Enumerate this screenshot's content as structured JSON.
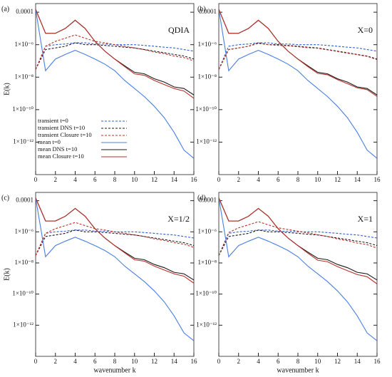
{
  "chart_data": [
    {
      "type": "line",
      "panel_label": "(a)",
      "annotation": "QDIA",
      "ylabel": "E(k)",
      "yscale": "log",
      "legend": "lower left",
      "x": [
        0,
        1,
        2,
        3,
        4,
        5,
        6,
        7,
        8,
        9,
        10,
        11,
        12,
        13,
        14,
        15,
        16
      ],
      "xlim": [
        0,
        16
      ],
      "xticks": [
        0,
        2,
        4,
        6,
        8,
        10,
        12,
        14,
        16
      ],
      "ylim": [
        1e-14,
        0.00034
      ],
      "yticks": [
        0.0001,
        {
          "value": 1e-06,
          "label": "1×10⁻⁶"
        },
        {
          "value": 1e-08,
          "label": "1×10⁻⁸"
        },
        {
          "value": 1e-10,
          "label": "1×10⁻¹⁰"
        },
        {
          "value": 1e-12,
          "label": "1×10⁻¹²"
        }
      ],
      "series": [
        {
          "name": "transient t=0",
          "color": "#2f5fd0",
          "dash": true,
          "values": [
            3e-08,
            8e-07,
            1e-06,
            1.1e-06,
            1.3e-06,
            1.3e-06,
            1.1e-06,
            1.1e-06,
            1e-06,
            1e-06,
            1e-06,
            9e-07,
            8e-07,
            7e-07,
            6.3e-07,
            5e-07,
            4e-07
          ]
        },
        {
          "name": "transient DNS t=10",
          "color": "#1a1a1a",
          "dash": true,
          "values": [
            3e-08,
            5e-07,
            6.3e-07,
            8e-07,
            1.3e-06,
            1e-06,
            1e-06,
            9e-07,
            8e-07,
            7e-07,
            6.3e-07,
            5e-07,
            4e-07,
            3.2e-07,
            2.5e-07,
            2e-07,
            1.3e-07
          ]
        },
        {
          "name": "transient Closure t=10",
          "color": "#b8322b",
          "dash": true,
          "values": [
            3e-08,
            8e-07,
            1.6e-06,
            2.5e-06,
            4e-06,
            2.5e-06,
            1.6e-06,
            1.3e-06,
            1e-06,
            8e-07,
            6.3e-07,
            5e-07,
            3.5e-07,
            2.8e-07,
            2e-07,
            1.6e-07,
            1e-07
          ]
        },
        {
          "name": "mean t=0",
          "color": "#4a7fe0",
          "dash": false,
          "values": [
            0.00015,
            2.5e-08,
            1.3e-07,
            2.5e-07,
            4.5e-07,
            2.5e-07,
            1.3e-07,
            6.3e-08,
            2.5e-08,
            6.3e-09,
            2e-09,
            6.3e-10,
            1.6e-10,
            3.2e-11,
            4e-12,
            3.2e-13,
            1e-13
          ]
        },
        {
          "name": "mean DNS t=10",
          "color": "#1a1a1a",
          "dash": false,
          "values": [
            0.00015,
            5e-06,
            5e-06,
            1e-05,
            3.2e-05,
            1e-05,
            1.6e-06,
            4e-07,
            1.3e-07,
            5e-08,
            2e-08,
            1.6e-08,
            8e-09,
            5e-09,
            2.5e-09,
            2e-09,
            8e-10
          ]
        },
        {
          "name": "mean Closure t=10",
          "color": "#b8322b",
          "dash": false,
          "values": [
            0.00015,
            5e-06,
            5e-06,
            1e-05,
            3.2e-05,
            1e-05,
            1.6e-06,
            4e-07,
            1.3e-07,
            4.5e-08,
            1.6e-08,
            1.3e-08,
            6.3e-09,
            3.5e-09,
            2e-09,
            1.4e-09,
            5e-10
          ]
        }
      ]
    },
    {
      "type": "line",
      "panel_label": "(b)",
      "annotation": "X=0",
      "yscale": "log",
      "x": [
        0,
        1,
        2,
        3,
        4,
        5,
        6,
        7,
        8,
        9,
        10,
        11,
        12,
        13,
        14,
        15,
        16
      ],
      "xlim": [
        0,
        16
      ],
      "xticks": [
        0,
        2,
        4,
        6,
        8,
        10,
        12,
        14,
        16
      ],
      "ylim": [
        1e-14,
        0.00034
      ],
      "yticks": [
        0.0001,
        {
          "value": 1e-06,
          "label": "1×10⁻⁶"
        },
        {
          "value": 1e-08,
          "label": "1×10⁻⁸"
        },
        {
          "value": 1e-10,
          "label": "1×10⁻¹⁰"
        },
        {
          "value": 1e-12,
          "label": "1×10⁻¹²"
        }
      ],
      "series": [
        {
          "color": "#2f5fd0",
          "dash": true,
          "values": [
            3e-08,
            8e-07,
            1e-06,
            1.1e-06,
            1.3e-06,
            1.3e-06,
            1.1e-06,
            1.1e-06,
            1e-06,
            1e-06,
            1e-06,
            9e-07,
            8e-07,
            7e-07,
            6.3e-07,
            5e-07,
            4e-07
          ]
        },
        {
          "color": "#1a1a1a",
          "dash": true,
          "values": [
            3e-08,
            5e-07,
            6.3e-07,
            8e-07,
            1.3e-06,
            1e-06,
            1e-06,
            9e-07,
            8e-07,
            7e-07,
            6.3e-07,
            5e-07,
            4e-07,
            3.2e-07,
            2.5e-07,
            2e-07,
            1.3e-07
          ]
        },
        {
          "color": "#b8322b",
          "dash": true,
          "values": [
            3e-08,
            5e-07,
            6.3e-07,
            8e-07,
            1.2e-06,
            1e-06,
            9e-07,
            8.5e-07,
            7.5e-07,
            6.5e-07,
            6e-07,
            4.8e-07,
            3.8e-07,
            3e-07,
            2.4e-07,
            1.9e-07,
            1.2e-07
          ]
        },
        {
          "color": "#4a7fe0",
          "dash": false,
          "values": [
            0.00015,
            2.5e-08,
            1.3e-07,
            2.5e-07,
            4.5e-07,
            2.5e-07,
            1.3e-07,
            6.3e-08,
            2.5e-08,
            6.3e-09,
            2e-09,
            6.3e-10,
            1.6e-10,
            3.2e-11,
            4e-12,
            3.2e-13,
            1e-13
          ]
        },
        {
          "color": "#1a1a1a",
          "dash": false,
          "values": [
            0.00015,
            5e-06,
            5e-06,
            1e-05,
            3.2e-05,
            1e-05,
            1.6e-06,
            4e-07,
            1.3e-07,
            5e-08,
            2e-08,
            1.6e-08,
            8e-09,
            5e-09,
            2.5e-09,
            2e-09,
            8e-10
          ]
        },
        {
          "color": "#b8322b",
          "dash": false,
          "values": [
            0.00015,
            5e-06,
            5e-06,
            1e-05,
            3.2e-05,
            1e-05,
            1.6e-06,
            4e-07,
            1.3e-07,
            4.5e-08,
            1.7e-08,
            1.4e-08,
            7e-09,
            4e-09,
            2.2e-09,
            1.7e-09,
            6.5e-10
          ]
        }
      ]
    },
    {
      "type": "line",
      "panel_label": "(c)",
      "annotation": "X=1/2",
      "ylabel": "E(k)",
      "xlabel": "wavenumber k",
      "yscale": "log",
      "x": [
        0,
        1,
        2,
        3,
        4,
        5,
        6,
        7,
        8,
        9,
        10,
        11,
        12,
        13,
        14,
        15,
        16
      ],
      "xlim": [
        0,
        16
      ],
      "xticks": [
        0,
        2,
        4,
        6,
        8,
        10,
        12,
        14,
        16
      ],
      "ylim": [
        1e-14,
        0.00034
      ],
      "yticks": [
        0.0001,
        {
          "value": 1e-06,
          "label": "1×10⁻⁶"
        },
        {
          "value": 1e-08,
          "label": "1×10⁻⁸"
        },
        {
          "value": 1e-10,
          "label": "1×10⁻¹⁰"
        },
        {
          "value": 1e-12,
          "label": "1×10⁻¹²"
        }
      ],
      "series": [
        {
          "color": "#2f5fd0",
          "dash": true,
          "values": [
            3e-08,
            8e-07,
            1e-06,
            1.1e-06,
            1.3e-06,
            1.3e-06,
            1.1e-06,
            1.1e-06,
            1e-06,
            1e-06,
            1e-06,
            9e-07,
            8e-07,
            7e-07,
            6.3e-07,
            5e-07,
            4e-07
          ]
        },
        {
          "color": "#1a1a1a",
          "dash": true,
          "values": [
            3e-08,
            5e-07,
            6.3e-07,
            8e-07,
            1.3e-06,
            1e-06,
            1e-06,
            9e-07,
            8e-07,
            7e-07,
            6.3e-07,
            5e-07,
            4e-07,
            3.2e-07,
            2.5e-07,
            2e-07,
            1.3e-07
          ]
        },
        {
          "color": "#b8322b",
          "dash": true,
          "values": [
            3e-08,
            8e-07,
            1.6e-06,
            2.5e-06,
            4e-06,
            2.5e-06,
            1.6e-06,
            1.3e-06,
            1e-06,
            8e-07,
            6.3e-07,
            5e-07,
            3.5e-07,
            2.8e-07,
            2e-07,
            1.6e-07,
            1e-07
          ]
        },
        {
          "color": "#4a7fe0",
          "dash": false,
          "values": [
            0.00015,
            2.5e-08,
            1.3e-07,
            2.5e-07,
            4.5e-07,
            2.5e-07,
            1.3e-07,
            6.3e-08,
            2.5e-08,
            6.3e-09,
            2e-09,
            6.3e-10,
            1.6e-10,
            3.2e-11,
            4e-12,
            3.2e-13,
            1e-13
          ]
        },
        {
          "color": "#1a1a1a",
          "dash": false,
          "values": [
            0.00015,
            5e-06,
            5e-06,
            1e-05,
            3.2e-05,
            1e-05,
            1.6e-06,
            4e-07,
            1.3e-07,
            5e-08,
            2e-08,
            1.6e-08,
            8e-09,
            5e-09,
            2.5e-09,
            2e-09,
            8e-10
          ]
        },
        {
          "color": "#b8322b",
          "dash": false,
          "values": [
            0.00015,
            5e-06,
            5e-06,
            1e-05,
            3.2e-05,
            1e-05,
            1.6e-06,
            4e-07,
            1.3e-07,
            4.5e-08,
            1.6e-08,
            1.3e-08,
            6.3e-09,
            3.5e-09,
            2e-09,
            1.4e-09,
            5e-10
          ]
        }
      ]
    },
    {
      "type": "line",
      "panel_label": "(d)",
      "annotation": "X=1",
      "xlabel": "wavenumber k",
      "yscale": "log",
      "x": [
        0,
        1,
        2,
        3,
        4,
        5,
        6,
        7,
        8,
        9,
        10,
        11,
        12,
        13,
        14,
        15,
        16
      ],
      "xlim": [
        0,
        16
      ],
      "xticks": [
        0,
        2,
        4,
        6,
        8,
        10,
        12,
        14,
        16
      ],
      "ylim": [
        1e-14,
        0.00034
      ],
      "yticks": [
        0.0001,
        {
          "value": 1e-06,
          "label": "1×10⁻⁶"
        },
        {
          "value": 1e-08,
          "label": "1×10⁻⁸"
        },
        {
          "value": 1e-10,
          "label": "1×10⁻¹⁰"
        },
        {
          "value": 1e-12,
          "label": "1×10⁻¹²"
        }
      ],
      "series": [
        {
          "color": "#2f5fd0",
          "dash": true,
          "values": [
            3e-08,
            8e-07,
            1e-06,
            1.1e-06,
            1.3e-06,
            1.3e-06,
            1.1e-06,
            1.1e-06,
            1e-06,
            1e-06,
            1e-06,
            9e-07,
            8e-07,
            7e-07,
            6.3e-07,
            5e-07,
            4e-07
          ]
        },
        {
          "color": "#1a1a1a",
          "dash": true,
          "values": [
            3e-08,
            5e-07,
            6.3e-07,
            8e-07,
            1.3e-06,
            1e-06,
            1e-06,
            9e-07,
            8e-07,
            7e-07,
            6.3e-07,
            5e-07,
            4e-07,
            3.2e-07,
            2.5e-07,
            2e-07,
            1.3e-07
          ]
        },
        {
          "color": "#b8322b",
          "dash": true,
          "values": [
            3e-08,
            9e-07,
            1.8e-06,
            2.8e-06,
            4.5e-06,
            2.8e-06,
            1.8e-06,
            1.4e-06,
            1.1e-06,
            8.5e-07,
            6.5e-07,
            5e-07,
            3.5e-07,
            2.7e-07,
            1.9e-07,
            1.5e-07,
            9e-08
          ]
        },
        {
          "color": "#4a7fe0",
          "dash": false,
          "values": [
            0.00015,
            2.5e-08,
            1.3e-07,
            2.5e-07,
            4.5e-07,
            2.5e-07,
            1.3e-07,
            6.3e-08,
            2.5e-08,
            6.3e-09,
            2e-09,
            6.3e-10,
            1.6e-10,
            3.2e-11,
            4e-12,
            3.2e-13,
            1e-13
          ]
        },
        {
          "color": "#1a1a1a",
          "dash": false,
          "values": [
            0.00015,
            5e-06,
            5e-06,
            1e-05,
            3.2e-05,
            1e-05,
            1.6e-06,
            4e-07,
            1.3e-07,
            5e-08,
            2e-08,
            1.6e-08,
            8e-09,
            5e-09,
            2.5e-09,
            2e-09,
            8e-10
          ]
        },
        {
          "color": "#b8322b",
          "dash": false,
          "values": [
            0.00015,
            5e-06,
            5e-06,
            1e-05,
            3.2e-05,
            1e-05,
            1.6e-06,
            4e-07,
            1.3e-07,
            4.3e-08,
            1.5e-08,
            1.2e-08,
            5.8e-09,
            3.2e-09,
            1.8e-09,
            1.3e-09,
            4.5e-10
          ]
        }
      ]
    }
  ]
}
